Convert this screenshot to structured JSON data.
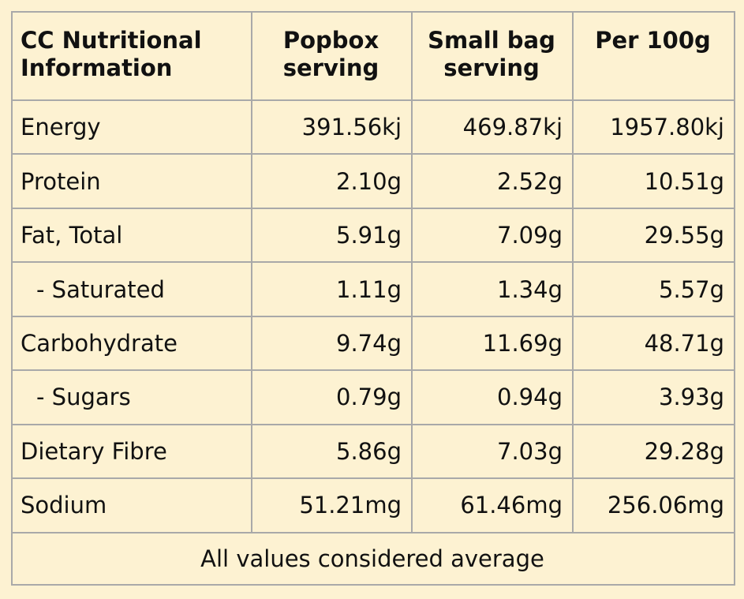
{
  "table": {
    "headers": {
      "col1": "CC Nutritional Information",
      "col2": "Popbox serving",
      "col3": "Small bag serving",
      "col4": "Per 100g"
    },
    "rows": [
      {
        "label": "Energy",
        "popbox": "391.56kj",
        "small_bag": "469.87kj",
        "per_100g": "1957.80kj"
      },
      {
        "label": "Protein",
        "popbox": "2.10g",
        "small_bag": "2.52g",
        "per_100g": "10.51g"
      },
      {
        "label": "Fat, Total",
        "popbox": "5.91g",
        "small_bag": "7.09g",
        "per_100g": "29.55g"
      },
      {
        "label": "- Saturated",
        "popbox": "1.11g",
        "small_bag": "1.34g",
        "per_100g": "5.57g"
      },
      {
        "label": "Carbohydrate",
        "popbox": "9.74g",
        "small_bag": "11.69g",
        "per_100g": "48.71g"
      },
      {
        "label": "- Sugars",
        "popbox": "0.79g",
        "small_bag": "0.94g",
        "per_100g": "3.93g"
      },
      {
        "label": "Dietary Fibre",
        "popbox": "5.86g",
        "small_bag": "7.03g",
        "per_100g": "29.28g"
      },
      {
        "label": "Sodium",
        "popbox": "51.21mg",
        "small_bag": "61.46mg",
        "per_100g": "256.06mg"
      }
    ],
    "footer": "All values considered average"
  }
}
